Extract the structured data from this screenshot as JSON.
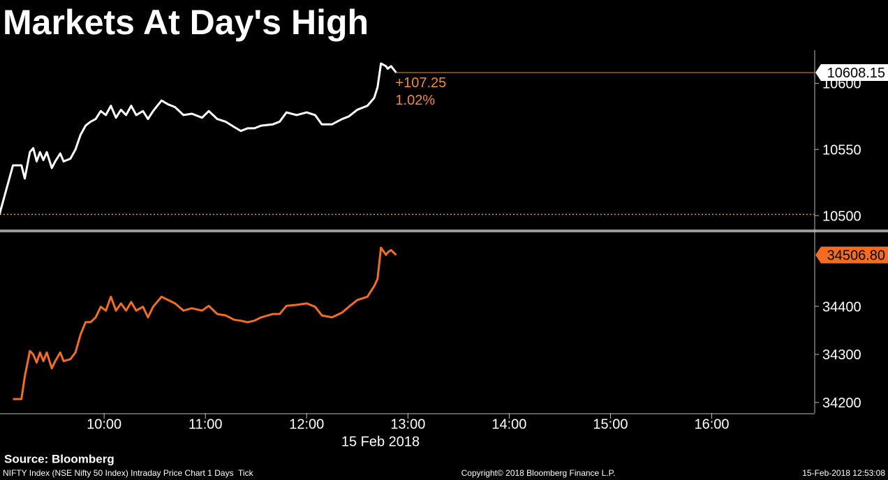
{
  "title": "Markets At Day's High",
  "chart_data": [
    {
      "type": "line",
      "x": [
        538,
        546,
        551,
        553,
        556,
        558,
        560,
        562,
        564,
        566,
        569,
        571,
        574,
        576,
        580,
        583,
        586,
        589,
        592,
        595,
        598,
        601,
        604,
        607,
        610,
        613,
        616,
        619,
        623,
        626,
        629,
        634,
        638,
        642,
        647,
        652,
        658,
        662,
        667,
        672,
        677,
        681,
        685,
        689,
        693,
        700,
        704,
        708,
        714,
        720,
        725,
        729,
        735,
        741,
        745,
        750,
        756,
        760,
        762,
        764,
        767,
        768,
        770,
        773
      ],
      "series": [
        {
          "color": "#ffffff",
          "values": [
            10501,
            10538,
            10538,
            10528,
            10548,
            10551,
            10541,
            10548,
            10542,
            10548,
            10536,
            10541,
            10547,
            10541,
            10543,
            10550,
            10561,
            10568,
            10571,
            10573,
            10579,
            10576,
            10583,
            10574,
            10580,
            10576,
            10583,
            10576,
            10579,
            10573,
            10579,
            10587,
            10584,
            10582,
            10576,
            10577,
            10574,
            10579,
            10573,
            10571,
            10567,
            10564,
            10566,
            10566,
            10568,
            10569,
            10571,
            10578,
            10576,
            10578,
            10576,
            10569,
            10569,
            10573,
            10575,
            10580,
            10583,
            10589,
            10597,
            10615,
            10613,
            10611,
            10613,
            10608.15
          ]
        }
      ],
      "xlim": [
        538.3,
        1021
      ],
      "ylim": [
        10490,
        10625
      ],
      "yticks": [
        10500,
        10550,
        10600
      ],
      "reference_line": 10500.9,
      "reference_color": "#f08a3c",
      "last_price": 10608.15,
      "last_price_color": "#ffffff",
      "annotations": [
        "+107.25",
        "1.02%"
      ],
      "annotation_color": "#f08a3c"
    },
    {
      "type": "line",
      "x": [
        538,
        546,
        551,
        553,
        556,
        558,
        560,
        562,
        564,
        566,
        569,
        571,
        574,
        576,
        580,
        583,
        586,
        589,
        592,
        595,
        598,
        601,
        604,
        607,
        610,
        613,
        616,
        619,
        623,
        626,
        629,
        634,
        638,
        642,
        647,
        652,
        658,
        662,
        667,
        672,
        677,
        681,
        685,
        689,
        693,
        700,
        704,
        708,
        714,
        720,
        725,
        729,
        735,
        741,
        745,
        750,
        756,
        760,
        762,
        764,
        767,
        768,
        770,
        773
      ],
      "series": [
        {
          "color": "#f26d21",
          "values": [
            null,
            34207,
            34207,
            34254,
            34307,
            34300,
            34283,
            34304,
            34286,
            34304,
            34271,
            34286,
            34304,
            34286,
            34290,
            34304,
            34341,
            34367,
            34367,
            34377,
            34399,
            34391,
            34420,
            34391,
            34406,
            34391,
            34409,
            34391,
            34399,
            34377,
            34399,
            34420,
            34413,
            34406,
            34391,
            34396,
            34391,
            34401,
            34384,
            34381,
            34372,
            34370,
            34367,
            34370,
            34377,
            34384,
            34384,
            34401,
            34403,
            34406,
            34399,
            34381,
            34377,
            34387,
            34399,
            34413,
            34420,
            34442,
            34457,
            34522,
            34507,
            34512,
            34517,
            34506.8
          ]
        }
      ],
      "xlim": [
        538.3,
        1021
      ],
      "ylim": [
        34178,
        34551
      ],
      "yticks": [
        34200,
        34300,
        34400
      ],
      "last_price": {
        "value": 34506.8,
        "label": "34506.80"
      },
      "last_price_color": "#f26d21",
      "xticks": [
        {
          "value": 600,
          "label": "10:00"
        },
        {
          "value": 660,
          "label": "11:00"
        },
        {
          "value": 720,
          "label": "12:00"
        },
        {
          "value": 780,
          "label": "13:00"
        },
        {
          "value": 840,
          "label": "14:00"
        },
        {
          "value": 900,
          "label": "15:00"
        },
        {
          "value": 960,
          "label": "16:00"
        }
      ],
      "x_label": "15 Feb 2018"
    }
  ],
  "footer": {
    "source": "Source: Bloomberg",
    "description": "NIFTY Index (NSE Nifty 50 Index) Intraday Price Chart 1 Days  Tick",
    "copyright": "Copyright© 2018 Bloomberg Finance L.P.",
    "timestamp": "15-Feb-2018 12:53:08"
  }
}
